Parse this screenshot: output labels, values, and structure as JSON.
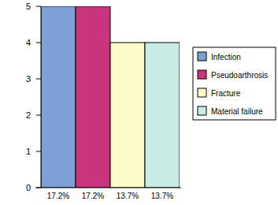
{
  "chart_data": {
    "type": "bar",
    "categories": [
      "17.2%",
      "17.2%",
      "13.7%",
      "13.7%"
    ],
    "series": [
      {
        "name": "Infection",
        "color": "#7f9fd7",
        "values": [
          5,
          null,
          null,
          null
        ]
      },
      {
        "name": "Pseudoarthrosis",
        "color": "#c8357c",
        "values": [
          null,
          5,
          null,
          null
        ]
      },
      {
        "name": "Fracture",
        "color": "#fdfbc8",
        "values": [
          null,
          null,
          4,
          null
        ]
      },
      {
        "name": "Material failure",
        "color": "#c8ebe5",
        "values": [
          null,
          null,
          null,
          4
        ]
      }
    ],
    "ylim": [
      0,
      5
    ],
    "yticks": [
      0,
      1,
      2,
      3,
      4,
      5
    ],
    "legend": "right"
  }
}
